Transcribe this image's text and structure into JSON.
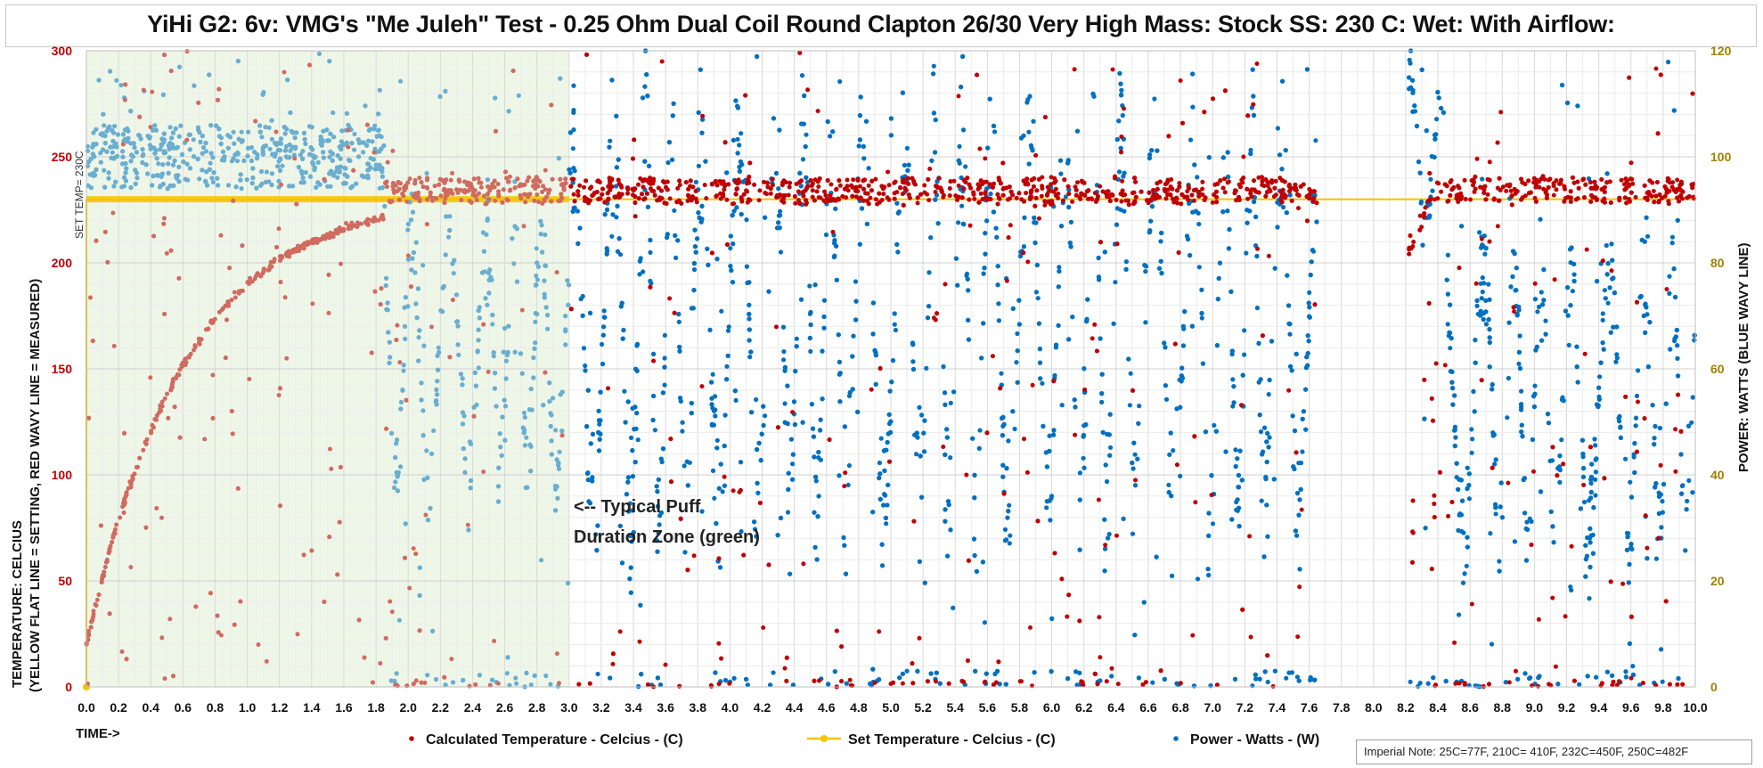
{
  "chart_data": {
    "type": "scatter",
    "title": "YiHi G2: 6v: VMG's \"Me Juleh\" Test - 0.25 Ohm Dual Coil Round Clapton  26/30 Very High Mass: Stock SS: 230 C: Wet: With Airflow:",
    "xlabel": "TIME->",
    "ylabel_left_line1": "TEMPERATURE: CELCIUS",
    "ylabel_left_line2": "(YELLOW FLAT LINE = SETTING, RED WAVY LINE = MEASURED)",
    "ylabel_right": "POWER: WATTS (BLUE WAVY LINE)",
    "x_ticks": [
      "0.0",
      "0.2",
      "0.4",
      "0.6",
      "0.8",
      "1.0",
      "1.2",
      "1.4",
      "1.6",
      "1.8",
      "2.0",
      "2.2",
      "2.4",
      "2.6",
      "2.8",
      "3.0",
      "3.2",
      "3.4",
      "3.6",
      "3.8",
      "4.0",
      "4.2",
      "4.4",
      "4.6",
      "4.8",
      "5.0",
      "5.2",
      "5.4",
      "5.6",
      "5.8",
      "6.0",
      "6.2",
      "6.4",
      "6.6",
      "6.8",
      "7.0",
      "7.2",
      "7.4",
      "7.6",
      "7.8",
      "8.0",
      "8.2",
      "8.4",
      "8.6",
      "8.8",
      "9.0",
      "9.2",
      "9.4",
      "9.6",
      "9.8",
      "10.0"
    ],
    "xlim": [
      0,
      10
    ],
    "y_left_ticks": [
      "0",
      "50",
      "100",
      "150",
      "200",
      "250",
      "300"
    ],
    "ylim_left": [
      0,
      300
    ],
    "y_right_ticks": [
      "0",
      "20",
      "40",
      "60",
      "80",
      "100",
      "120"
    ],
    "ylim_right": [
      0,
      120
    ],
    "set_temp_label": "SET TEMP= 230C",
    "set_temperature": 230,
    "annotation_line1": "<-- Typical Puff",
    "annotation_line2": "Duration Zone (green)",
    "green_zone": [
      0,
      3.0
    ],
    "data_gap": [
      7.65,
      8.22
    ],
    "ramp_end": 1.85,
    "series": [
      {
        "name": "Calculated Temperature - Celcius - (C)",
        "color": "#c00000",
        "axis": "left"
      },
      {
        "name": "Set Temperature - Celcius - (C)",
        "color": "#f5c400",
        "axis": "left"
      },
      {
        "name": "Power - Watts - (W)",
        "color": "#0070c0",
        "axis": "right"
      }
    ],
    "power_segments": [
      {
        "t0": 0.0,
        "t1": 1.85,
        "min": 94,
        "max": 106
      },
      {
        "t0": 1.85,
        "t1": 3.0,
        "min": 30,
        "max": 96
      },
      {
        "t0": 3.0,
        "t1": 7.65,
        "min": 20,
        "max": 118
      },
      {
        "t0": 8.22,
        "t1": 8.45,
        "min": 83,
        "max": 120
      },
      {
        "t0": 8.45,
        "t1": 10.0,
        "min": 18,
        "max": 90
      }
    ],
    "temperature_band": [
      228,
      240
    ],
    "colors": {
      "temp": "#c00000",
      "temp_zone": "#d06b60",
      "set": "#f5c400",
      "power": "#0070c0",
      "power_zone": "#6aaed0",
      "zone_bg": "#eef6e8",
      "left_axis_text": "#c00000",
      "right_axis_text": "#a08000"
    },
    "note": "Imperial Note: 25C=77F, 210C= 410F, 232C=450F, 250C=482F"
  }
}
